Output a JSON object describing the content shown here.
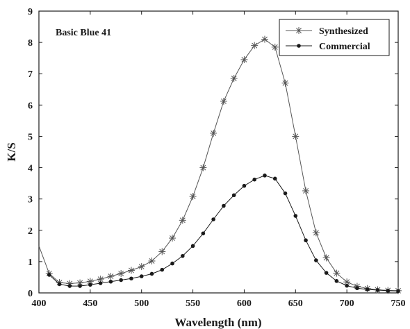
{
  "chart_data": {
    "type": "line",
    "title": "",
    "xlabel": "Wavelength (nm)",
    "ylabel": "K/S",
    "annotation": "Basic Blue 41",
    "xlim": [
      400,
      750
    ],
    "ylim": [
      0,
      9
    ],
    "xticks": [
      400,
      450,
      500,
      550,
      600,
      650,
      700,
      750
    ],
    "yticks": [
      0,
      1,
      2,
      3,
      4,
      5,
      6,
      7,
      8,
      9
    ],
    "grid": false,
    "legend_position": "top-right",
    "series": [
      {
        "name": "Synthesized",
        "marker": "asterisk",
        "color": "#555555",
        "x": [
          400,
          410,
          420,
          430,
          440,
          450,
          460,
          470,
          480,
          490,
          500,
          510,
          520,
          530,
          540,
          550,
          560,
          570,
          580,
          590,
          600,
          610,
          620,
          630,
          640,
          650,
          660,
          670,
          680,
          690,
          700,
          710,
          720,
          730,
          740,
          750
        ],
        "y": [
          1.5,
          0.62,
          0.33,
          0.3,
          0.32,
          0.37,
          0.44,
          0.53,
          0.62,
          0.72,
          0.84,
          1.02,
          1.32,
          1.75,
          2.32,
          3.08,
          4.0,
          5.1,
          6.12,
          6.85,
          7.45,
          7.9,
          8.1,
          7.85,
          6.7,
          5.0,
          3.26,
          1.92,
          1.12,
          0.63,
          0.35,
          0.21,
          0.14,
          0.1,
          0.08,
          0.07
        ],
        "marked_from_index": 1
      },
      {
        "name": "Commercial",
        "marker": "dot",
        "color": "#1a1a1a",
        "x": [
          410,
          420,
          430,
          440,
          450,
          460,
          470,
          480,
          490,
          500,
          510,
          520,
          530,
          540,
          550,
          560,
          570,
          580,
          590,
          600,
          610,
          620,
          630,
          640,
          650,
          660,
          670,
          680,
          690,
          700,
          710,
          720,
          730,
          740,
          750
        ],
        "y": [
          0.58,
          0.28,
          0.22,
          0.22,
          0.26,
          0.31,
          0.36,
          0.41,
          0.46,
          0.53,
          0.61,
          0.74,
          0.94,
          1.18,
          1.5,
          1.9,
          2.35,
          2.78,
          3.12,
          3.42,
          3.62,
          3.75,
          3.65,
          3.18,
          2.46,
          1.68,
          1.04,
          0.64,
          0.38,
          0.23,
          0.15,
          0.11,
          0.09,
          0.07,
          0.06
        ],
        "marked_from_index": 0
      }
    ]
  }
}
